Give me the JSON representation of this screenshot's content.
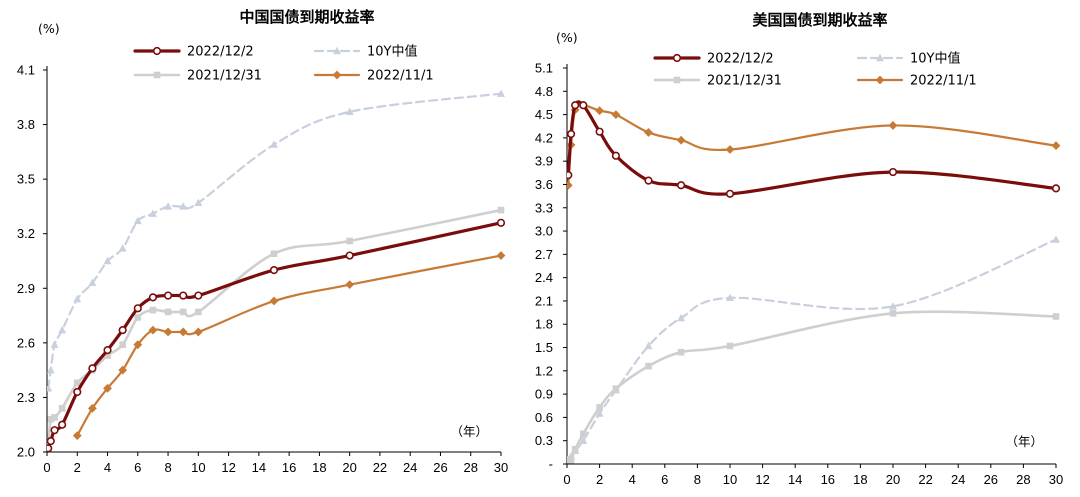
{
  "chart_data": [
    {
      "type": "line",
      "title": "中国国债到期收益率",
      "ylabel": "(%)",
      "xlabel": "（年）",
      "xlim": [
        0,
        30
      ],
      "ylim": [
        2.0,
        4.1
      ],
      "xticks": [
        0,
        2,
        4,
        6,
        8,
        10,
        12,
        14,
        16,
        18,
        20,
        22,
        24,
        26,
        28,
        30
      ],
      "xtick_labels": [
        "0",
        "2",
        "4",
        "6",
        "8",
        "10",
        "12",
        "14",
        "16",
        "18",
        "20",
        "22",
        "24",
        "26",
        "28",
        "30"
      ],
      "yticks": [
        2.0,
        2.3,
        2.6,
        2.9,
        3.2,
        3.5,
        3.8,
        4.1
      ],
      "ytick_labels": [
        "2.0",
        "2.3",
        "2.6",
        "2.9",
        "3.2",
        "3.5",
        "3.8",
        "4.1"
      ],
      "series": [
        {
          "name": "2022/12/2",
          "color": "#7B0C0C",
          "marker": "circle",
          "style": "solid",
          "width": 3.2,
          "x": [
            0.08,
            0.25,
            0.5,
            1,
            2,
            3,
            4,
            5,
            6,
            7,
            8,
            9,
            10,
            15,
            20,
            30
          ],
          "y": [
            2.02,
            2.06,
            2.12,
            2.15,
            2.33,
            2.46,
            2.56,
            2.67,
            2.79,
            2.85,
            2.86,
            2.86,
            2.86,
            3.0,
            3.08,
            3.26
          ]
        },
        {
          "name": "10Y中值",
          "color": "#C8D0DE",
          "marker": "triangle",
          "style": "dashed",
          "width": 2.2,
          "x": [
            0.08,
            0.25,
            0.5,
            1,
            2,
            3,
            4,
            5,
            6,
            7,
            8,
            9,
            10,
            15,
            20,
            30
          ],
          "y": [
            2.35,
            2.45,
            2.59,
            2.67,
            2.84,
            2.93,
            3.05,
            3.12,
            3.27,
            3.31,
            3.35,
            3.35,
            3.37,
            3.69,
            3.87,
            3.97
          ]
        },
        {
          "name": "2021/12/31",
          "color": "#CFCFCF",
          "marker": "square",
          "style": "solid",
          "width": 2.6,
          "x": [
            0.08,
            0.25,
            0.5,
            1,
            2,
            3,
            4,
            5,
            6,
            7,
            8,
            9,
            10,
            15,
            20,
            30
          ],
          "y": [
            2.05,
            2.18,
            2.19,
            2.24,
            2.38,
            2.45,
            2.53,
            2.59,
            2.74,
            2.78,
            2.77,
            2.77,
            2.77,
            3.09,
            3.16,
            3.33
          ]
        },
        {
          "name": "2022/11/1",
          "color": "#C67A36",
          "marker": "diamond",
          "style": "solid",
          "width": 2.2,
          "x": [
            2,
            3,
            4,
            5,
            6,
            7,
            8,
            9,
            10,
            15,
            20,
            30
          ],
          "y": [
            2.09,
            2.24,
            2.35,
            2.45,
            2.59,
            2.67,
            2.66,
            2.66,
            2.66,
            2.83,
            2.92,
            3.08
          ]
        }
      ]
    },
    {
      "type": "line",
      "title": "美国国债到期收益率",
      "ylabel": "(%)",
      "xlabel": "（年）",
      "xlim": [
        0,
        30
      ],
      "ylim": [
        0,
        5.1
      ],
      "xticks": [
        0,
        2,
        4,
        6,
        8,
        10,
        12,
        14,
        16,
        18,
        20,
        22,
        24,
        26,
        28,
        30
      ],
      "xtick_labels": [
        "0",
        "2",
        "4",
        "6",
        "8",
        "10",
        "12",
        "14",
        "16",
        "18",
        "20",
        "22",
        "24",
        "26",
        "28",
        "30"
      ],
      "yticks": [
        0,
        0.3,
        0.6,
        0.9,
        1.2,
        1.5,
        1.8,
        2.1,
        2.4,
        2.7,
        3.0,
        3.3,
        3.6,
        3.9,
        4.2,
        4.5,
        4.8,
        5.1
      ],
      "ytick_labels": [
        "-",
        "0.3",
        "0.6",
        "0.9",
        "1.2",
        "1.5",
        "1.8",
        "2.1",
        "2.4",
        "2.7",
        "3.0",
        "3.3",
        "3.6",
        "3.9",
        "4.2",
        "4.5",
        "4.8",
        "5.1"
      ],
      "series": [
        {
          "name": "2022/12/2",
          "color": "#7B0C0C",
          "marker": "circle",
          "style": "solid",
          "width": 3.2,
          "x": [
            0.08,
            0.25,
            0.5,
            1,
            2,
            3,
            5,
            7,
            10,
            20,
            30
          ],
          "y": [
            3.72,
            4.25,
            4.62,
            4.62,
            4.28,
            3.97,
            3.65,
            3.59,
            3.48,
            3.76,
            3.55
          ]
        },
        {
          "name": "10Y中值",
          "color": "#C8D0DE",
          "marker": "triangle",
          "style": "dashed",
          "width": 2.2,
          "x": [
            0.08,
            0.25,
            0.5,
            1,
            2,
            3,
            5,
            7,
            10,
            20,
            30
          ],
          "y": [
            0.05,
            0.1,
            0.17,
            0.3,
            0.65,
            0.95,
            1.52,
            1.88,
            2.14,
            2.03,
            2.89
          ]
        },
        {
          "name": "2021/12/31",
          "color": "#CFCFCF",
          "marker": "square",
          "style": "solid",
          "width": 2.6,
          "x": [
            0.08,
            0.25,
            0.5,
            1,
            2,
            3,
            5,
            7,
            10,
            20,
            30
          ],
          "y": [
            0.06,
            0.05,
            0.19,
            0.39,
            0.73,
            0.97,
            1.26,
            1.44,
            1.52,
            1.94,
            1.9
          ]
        },
        {
          "name": "2022/11/1",
          "color": "#C67A36",
          "marker": "diamond",
          "style": "solid",
          "width": 2.2,
          "x": [
            0.08,
            0.25,
            0.5,
            1,
            2,
            3,
            5,
            7,
            10,
            20,
            30
          ],
          "y": [
            3.59,
            4.11,
            4.56,
            4.62,
            4.55,
            4.5,
            4.27,
            4.17,
            4.05,
            4.36,
            4.1
          ]
        }
      ]
    }
  ]
}
